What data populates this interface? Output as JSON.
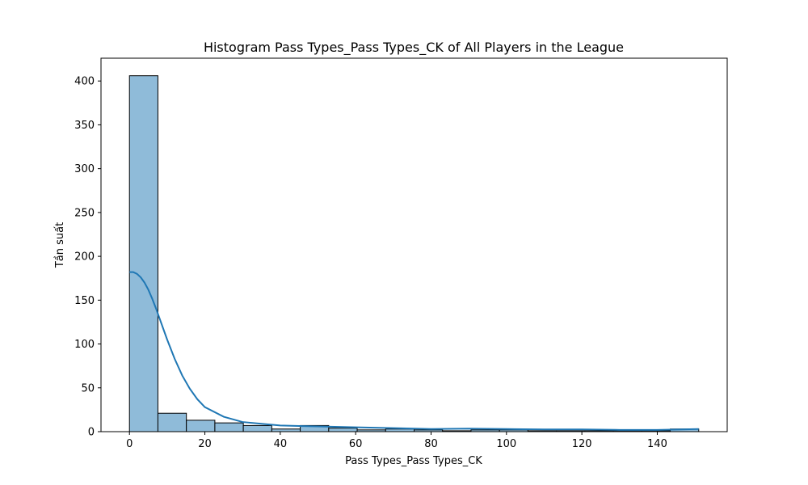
{
  "chart_data": {
    "type": "bar",
    "title": "Histogram Pass Types_Pass Types_CK of All Players in the League",
    "xlabel": "Pass Types_Pass Types_CK",
    "ylabel": "Tần suất",
    "xlim": [
      -7.55,
      158.55
    ],
    "ylim": [
      0,
      426
    ],
    "x_ticks": [
      0,
      20,
      40,
      60,
      80,
      100,
      120,
      140
    ],
    "y_ticks": [
      0,
      50,
      100,
      150,
      200,
      250,
      300,
      350,
      400
    ],
    "bin_edges": [
      0,
      7.55,
      15.1,
      22.65,
      30.2,
      37.75,
      45.3,
      52.85,
      60.4,
      67.95,
      75.5,
      83.05,
      90.6,
      98.15,
      105.7,
      113.25,
      120.8,
      128.35,
      135.9,
      143.45,
      151
    ],
    "values": [
      406,
      21,
      13,
      10,
      7,
      3,
      7,
      4,
      2,
      3,
      2,
      1,
      2,
      2,
      1,
      1,
      1,
      1,
      1,
      3
    ],
    "kde": {
      "x": [
        0,
        1,
        2,
        3,
        4,
        5,
        6,
        7,
        8,
        9,
        10,
        12,
        14,
        16,
        18,
        20,
        25,
        30,
        35,
        40,
        45,
        50,
        60,
        70,
        80,
        90,
        100,
        110,
        120,
        130,
        140,
        151
      ],
      "y": [
        182,
        182,
        180,
        176,
        170,
        162,
        152,
        141,
        129,
        117,
        105,
        83,
        64,
        49,
        37,
        28,
        17,
        11,
        9,
        7,
        6.5,
        6,
        5,
        4,
        3,
        3.5,
        3,
        2.5,
        2.5,
        2,
        2,
        3
      ]
    },
    "bar_color": "#8fbbd9",
    "line_color": "#1f77b4",
    "grid": false,
    "legend": "none"
  }
}
